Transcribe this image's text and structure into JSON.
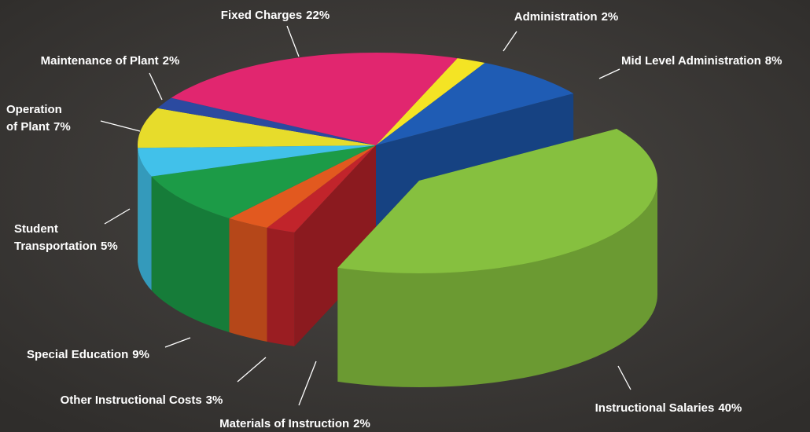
{
  "chart_data": {
    "type": "pie",
    "categories": [
      "Administration",
      "Mid Level Administration",
      "Instructional Salaries",
      "Materials of Instruction",
      "Other Instructional Costs",
      "Special Education",
      "Student Transportation",
      "Operation of Plant",
      "Maintenance of Plant",
      "Fixed Charges"
    ],
    "values": [
      2,
      8,
      40,
      2,
      3,
      9,
      5,
      7,
      2,
      22
    ],
    "value_labels": [
      "2%",
      "8%",
      "40%",
      "2%",
      "3%",
      "9%",
      "5%",
      "7%",
      "2%",
      "22%"
    ],
    "colors": [
      "#f4e424",
      "#1f5cb4",
      "#86c03f",
      "#c1242b",
      "#e2591f",
      "#1c9b47",
      "#41c1ea",
      "#e7dc2b",
      "#2b4aa0",
      "#e1266f"
    ]
  }
}
